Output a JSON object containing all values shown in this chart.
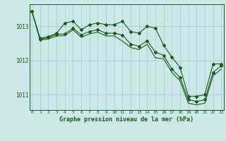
{
  "background_color": "#cce8e8",
  "grid_color": "#aacece",
  "line_color": "#1a5c1a",
  "marker_color": "#1a5c1a",
  "title": "Graphe pression niveau de la mer (hPa)",
  "xlabel_hours": [
    0,
    1,
    2,
    3,
    4,
    5,
    6,
    7,
    8,
    9,
    10,
    11,
    12,
    13,
    14,
    15,
    16,
    17,
    18,
    19,
    20,
    21,
    22,
    23
  ],
  "ylim": [
    1010.55,
    1013.65
  ],
  "yticks": [
    1011,
    1012,
    1013
  ],
  "series": [
    [
      1013.45,
      1012.65,
      1012.7,
      1012.8,
      1013.1,
      1013.15,
      1012.9,
      1013.05,
      1013.1,
      1013.05,
      1013.05,
      1013.15,
      1012.85,
      1012.8,
      1013.0,
      1012.95,
      1012.45,
      1012.1,
      1011.8,
      1010.95,
      1010.95,
      1011.0,
      1011.9,
      1011.9
    ],
    [
      1013.45,
      1012.62,
      1012.67,
      1012.77,
      1012.78,
      1012.95,
      1012.75,
      1012.85,
      1012.9,
      1012.8,
      1012.8,
      1012.75,
      1012.48,
      1012.42,
      1012.58,
      1012.25,
      1012.15,
      1011.75,
      1011.5,
      1010.85,
      1010.8,
      1010.85,
      1011.65,
      1011.85
    ],
    [
      1013.45,
      1012.6,
      1012.63,
      1012.72,
      1012.73,
      1012.9,
      1012.68,
      1012.78,
      1012.83,
      1012.72,
      1012.72,
      1012.57,
      1012.38,
      1012.32,
      1012.48,
      1012.08,
      1012.05,
      1011.65,
      1011.4,
      1010.75,
      1010.7,
      1010.75,
      1011.55,
      1011.75
    ]
  ]
}
